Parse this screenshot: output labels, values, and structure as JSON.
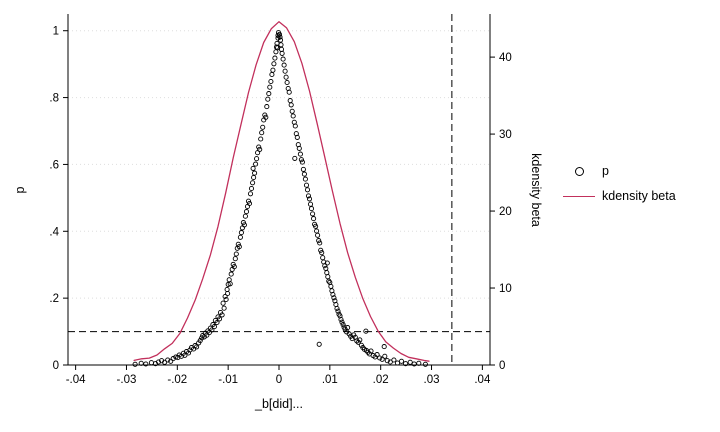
{
  "figure": {
    "y_left": {
      "title": "p",
      "ticks": [
        0,
        0.2,
        0.4,
        0.6,
        0.8,
        1
      ],
      "tick_labels": [
        "0",
        ".2",
        ".4",
        ".6",
        ".8",
        "1"
      ]
    },
    "y_right": {
      "title": "kdensity beta",
      "ticks": [
        0,
        10,
        20,
        30,
        40
      ],
      "tick_labels": [
        "0",
        "10",
        "20",
        "30",
        "40"
      ]
    },
    "x_axis": {
      "title": "_b[did]...",
      "ticks": [
        -0.04,
        -0.03,
        -0.02,
        -0.01,
        0,
        0.01,
        0.02,
        0.03,
        0.04
      ],
      "tick_labels": [
        "-.04",
        "-.03",
        "-.02",
        "-.01",
        "0",
        ".01",
        ".02",
        ".03",
        ".04"
      ]
    },
    "legend": {
      "items": [
        {
          "label": "p",
          "marker": "circle",
          "color": "#000000"
        },
        {
          "label": "kdensity beta",
          "marker": "line",
          "color": "#c2305c"
        }
      ]
    }
  },
  "chart_data": {
    "type": "scatter",
    "title": "",
    "xlabel": "_b[did]...",
    "ylabel_left": "p",
    "ylabel_right": "kdensity beta",
    "xlim": [
      -0.0415,
      0.0415
    ],
    "ylim_left": [
      0,
      1.05
    ],
    "ylim_right": [
      0,
      45.6
    ],
    "grid": "horizontal-dotted-faint",
    "legend_position": "right-outside",
    "reference_lines": {
      "horizontal_p": 0.1,
      "vertical_x": 0.034,
      "style": "dashed",
      "color": "#000000"
    },
    "series": [
      {
        "name": "p",
        "type": "scatter",
        "axis": "left",
        "marker": "hollow-circle",
        "color": "#000000",
        "points": [
          [
            -0.0283,
            0.002
          ],
          [
            -0.0271,
            0.005
          ],
          [
            -0.0262,
            0.003
          ],
          [
            -0.0251,
            0.007
          ],
          [
            -0.0243,
            0.004
          ],
          [
            -0.0237,
            0.009
          ],
          [
            -0.0231,
            0.013
          ],
          [
            -0.0225,
            0.008
          ],
          [
            -0.0219,
            0.015
          ],
          [
            -0.0213,
            0.011
          ],
          [
            -0.0208,
            0.019
          ],
          [
            -0.0203,
            0.024
          ],
          [
            -0.0199,
            0.022
          ],
          [
            -0.0196,
            0.03
          ],
          [
            -0.0192,
            0.026
          ],
          [
            -0.0188,
            0.035
          ],
          [
            -0.0185,
            0.029
          ],
          [
            -0.0182,
            0.04
          ],
          [
            -0.0178,
            0.036
          ],
          [
            -0.0175,
            0.045
          ],
          [
            -0.0172,
            0.052
          ],
          [
            -0.0168,
            0.048
          ],
          [
            -0.0165,
            0.058
          ],
          [
            -0.0162,
            0.054
          ],
          [
            -0.0158,
            0.066
          ],
          [
            -0.0155,
            0.073
          ],
          [
            -0.0152,
            0.081
          ],
          [
            -0.015,
            0.088
          ],
          [
            -0.0147,
            0.084
          ],
          [
            -0.0145,
            0.095
          ],
          [
            -0.0142,
            0.089
          ],
          [
            -0.014,
            0.102
          ],
          [
            -0.0137,
            0.097
          ],
          [
            -0.0135,
            0.11
          ],
          [
            -0.0132,
            0.105
          ],
          [
            -0.013,
            0.121
          ],
          [
            -0.0127,
            0.115
          ],
          [
            -0.0125,
            0.133
          ],
          [
            -0.0122,
            0.127
          ],
          [
            -0.012,
            0.144
          ],
          [
            -0.0117,
            0.138
          ],
          [
            -0.0115,
            0.157
          ],
          [
            -0.0112,
            0.15
          ],
          [
            -0.011,
            0.185
          ],
          [
            -0.0108,
            0.17
          ],
          [
            -0.0106,
            0.205
          ],
          [
            -0.0104,
            0.196
          ],
          [
            -0.0102,
            0.226
          ],
          [
            -0.0101,
            0.214
          ],
          [
            -0.01,
            0.241
          ],
          [
            -0.0098,
            0.255
          ],
          [
            -0.0096,
            0.243
          ],
          [
            -0.0094,
            0.272
          ],
          [
            -0.0092,
            0.286
          ],
          [
            -0.009,
            0.301
          ],
          [
            -0.0088,
            0.294
          ],
          [
            -0.0086,
            0.318
          ],
          [
            -0.0084,
            0.332
          ],
          [
            -0.0082,
            0.349
          ],
          [
            -0.008,
            0.361
          ],
          [
            -0.0078,
            0.354
          ],
          [
            -0.0076,
            0.382
          ],
          [
            -0.0074,
            0.396
          ],
          [
            -0.0072,
            0.41
          ],
          [
            -0.007,
            0.426
          ],
          [
            -0.0068,
            0.419
          ],
          [
            -0.0066,
            0.445
          ],
          [
            -0.0064,
            0.459
          ],
          [
            -0.0062,
            0.474
          ],
          [
            -0.006,
            0.49
          ],
          [
            -0.0058,
            0.483
          ],
          [
            -0.0056,
            0.512
          ],
          [
            -0.0054,
            0.528
          ],
          [
            -0.0052,
            0.545
          ],
          [
            -0.005,
            0.561
          ],
          [
            -0.0051,
            0.588
          ],
          [
            -0.0048,
            0.574
          ],
          [
            -0.0046,
            0.601
          ],
          [
            -0.0044,
            0.617
          ],
          [
            -0.0042,
            0.635
          ],
          [
            -0.004,
            0.652
          ],
          [
            -0.0038,
            0.645
          ],
          [
            -0.0036,
            0.676
          ],
          [
            -0.0034,
            0.695
          ],
          [
            -0.0032,
            0.711
          ],
          [
            -0.003,
            0.733
          ],
          [
            -0.0028,
            0.748
          ],
          [
            -0.0026,
            0.741
          ],
          [
            -0.0024,
            0.773
          ],
          [
            -0.0022,
            0.795
          ],
          [
            -0.002,
            0.812
          ],
          [
            -0.0018,
            0.831
          ],
          [
            -0.0016,
            0.848
          ],
          [
            -0.0014,
            0.869
          ],
          [
            -0.0012,
            0.882
          ],
          [
            -0.001,
            0.901
          ],
          [
            -0.0008,
            0.918
          ],
          [
            -0.0006,
            0.937
          ],
          [
            -0.0005,
            0.951
          ],
          [
            -0.0004,
            0.962
          ],
          [
            -0.0003,
            0.949
          ],
          [
            -0.0002,
            0.978
          ],
          [
            -0.0001,
            0.994
          ],
          [
            -0.0002,
            0.986
          ],
          [
            0.0001,
            0.989
          ],
          [
            0.0002,
            0.981
          ],
          [
            0.0003,
            0.972
          ],
          [
            0.0004,
            0.958
          ],
          [
            0.0005,
            0.944
          ],
          [
            0.0006,
            0.932
          ],
          [
            0.0008,
            0.915
          ],
          [
            0.001,
            0.897
          ],
          [
            0.0012,
            0.879
          ],
          [
            0.0014,
            0.861
          ],
          [
            0.0016,
            0.845
          ],
          [
            0.0018,
            0.827
          ],
          [
            0.002,
            0.816
          ],
          [
            0.0022,
            0.791
          ],
          [
            0.0024,
            0.778
          ],
          [
            0.0026,
            0.759
          ],
          [
            0.0028,
            0.745
          ],
          [
            0.003,
            0.726
          ],
          [
            0.0031,
            0.618
          ],
          [
            0.0032,
            0.715
          ],
          [
            0.0034,
            0.692
          ],
          [
            0.0036,
            0.681
          ],
          [
            0.0038,
            0.659
          ],
          [
            0.004,
            0.648
          ],
          [
            0.0042,
            0.631
          ],
          [
            0.0044,
            0.614
          ],
          [
            0.0046,
            0.607
          ],
          [
            0.0048,
            0.585
          ],
          [
            0.005,
            0.571
          ],
          [
            0.0052,
            0.556
          ],
          [
            0.0054,
            0.538
          ],
          [
            0.0056,
            0.524
          ],
          [
            0.0058,
            0.506
          ],
          [
            0.006,
            0.497
          ],
          [
            0.0062,
            0.481
          ],
          [
            0.0064,
            0.468
          ],
          [
            0.0066,
            0.452
          ],
          [
            0.0068,
            0.438
          ],
          [
            0.007,
            0.421
          ],
          [
            0.0072,
            0.415
          ],
          [
            0.0074,
            0.401
          ],
          [
            0.0076,
            0.388
          ],
          [
            0.0078,
            0.372
          ],
          [
            0.0079,
            0.062
          ],
          [
            0.008,
            0.365
          ],
          [
            0.0082,
            0.343
          ],
          [
            0.0084,
            0.336
          ],
          [
            0.0086,
            0.321
          ],
          [
            0.0088,
            0.308
          ],
          [
            0.009,
            0.297
          ],
          [
            0.0092,
            0.289
          ],
          [
            0.0094,
            0.276
          ],
          [
            0.0096,
            0.264
          ],
          [
            0.0098,
            0.251
          ],
          [
            0.0095,
            0.305
          ],
          [
            0.01,
            0.247
          ],
          [
            0.0102,
            0.235
          ],
          [
            0.0104,
            0.222
          ],
          [
            0.0106,
            0.211
          ],
          [
            0.0108,
            0.201
          ],
          [
            0.011,
            0.192
          ],
          [
            0.0112,
            0.181
          ],
          [
            0.0114,
            0.169
          ],
          [
            0.0116,
            0.161
          ],
          [
            0.0118,
            0.152
          ],
          [
            0.012,
            0.147
          ],
          [
            0.0122,
            0.136
          ],
          [
            0.0124,
            0.128
          ],
          [
            0.0126,
            0.121
          ],
          [
            0.0128,
            0.113
          ],
          [
            0.013,
            0.107
          ],
          [
            0.0133,
            0.099
          ],
          [
            0.0135,
            0.112
          ],
          [
            0.0138,
            0.093
          ],
          [
            0.0141,
            0.086
          ],
          [
            0.0144,
            0.079
          ],
          [
            0.0147,
            0.09
          ],
          [
            0.015,
            0.083
          ],
          [
            0.0153,
            0.072
          ],
          [
            0.0156,
            0.068
          ],
          [
            0.0159,
            0.075
          ],
          [
            0.0162,
            0.059
          ],
          [
            0.0165,
            0.052
          ],
          [
            0.0168,
            0.047
          ],
          [
            0.0171,
            0.101
          ],
          [
            0.0172,
            0.043
          ],
          [
            0.0175,
            0.038
          ],
          [
            0.0178,
            0.033
          ],
          [
            0.0181,
            0.042
          ],
          [
            0.0185,
            0.028
          ],
          [
            0.0189,
            0.024
          ],
          [
            0.0193,
            0.031
          ],
          [
            0.0198,
            0.021
          ],
          [
            0.0203,
            0.017
          ],
          [
            0.0207,
            0.055
          ],
          [
            0.0208,
            0.026
          ],
          [
            0.0213,
            0.013
          ],
          [
            0.0219,
            0.009
          ],
          [
            0.0226,
            0.015
          ],
          [
            0.0233,
            0.006
          ],
          [
            0.0241,
            0.011
          ],
          [
            0.0249,
            0.004
          ],
          [
            0.0258,
            0.008
          ],
          [
            0.0266,
            0.003
          ],
          [
            0.0275,
            0.005
          ],
          [
            0.0288,
            0.002
          ]
        ]
      },
      {
        "name": "kdensity beta",
        "type": "line",
        "axis": "right",
        "color": "#c2305c",
        "points": [
          [
            -0.0285,
            0.6
          ],
          [
            -0.027,
            0.8
          ],
          [
            -0.0255,
            0.9
          ],
          [
            -0.024,
            1.3
          ],
          [
            -0.0225,
            2.1
          ],
          [
            -0.021,
            2.8
          ],
          [
            -0.0195,
            4.1
          ],
          [
            -0.018,
            6.1
          ],
          [
            -0.0165,
            8.4
          ],
          [
            -0.015,
            11.2
          ],
          [
            -0.0135,
            14.3
          ],
          [
            -0.012,
            18.0
          ],
          [
            -0.0105,
            22.3
          ],
          [
            -0.009,
            26.9
          ],
          [
            -0.0075,
            31.2
          ],
          [
            -0.006,
            35.4
          ],
          [
            -0.0045,
            39.0
          ],
          [
            -0.003,
            41.9
          ],
          [
            -0.0015,
            43.7
          ],
          [
            0,
            44.6
          ],
          [
            0.0015,
            43.8
          ],
          [
            0.003,
            42.0
          ],
          [
            0.0045,
            39.2
          ],
          [
            0.006,
            35.6
          ],
          [
            0.0075,
            31.4
          ],
          [
            0.009,
            27.0
          ],
          [
            0.0105,
            22.6
          ],
          [
            0.012,
            18.4
          ],
          [
            0.0135,
            14.6
          ],
          [
            0.015,
            11.4
          ],
          [
            0.0165,
            8.6
          ],
          [
            0.018,
            6.3
          ],
          [
            0.0195,
            4.4
          ],
          [
            0.021,
            3.0
          ],
          [
            0.0225,
            2.2
          ],
          [
            0.024,
            1.5
          ],
          [
            0.0255,
            1.0
          ],
          [
            0.027,
            0.8
          ],
          [
            0.0285,
            0.6
          ],
          [
            0.0295,
            0.5
          ]
        ]
      }
    ]
  }
}
